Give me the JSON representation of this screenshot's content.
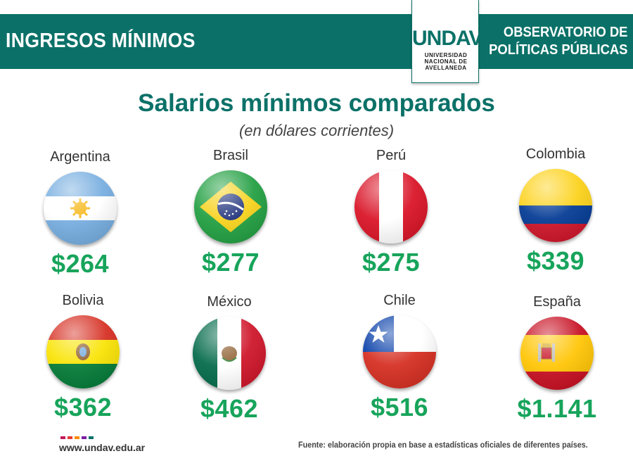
{
  "header": {
    "left_title": "INGRESOS MÍNIMOS",
    "right_line1": "OBSERVATORIO DE",
    "right_line2": "POLÍTICAS PÚBLICAS",
    "logo_text": "UNDAV",
    "logo_sub1": "UNIVERSIDAD",
    "logo_sub2": "NACIONAL DE",
    "logo_sub3": "AVELLANEDA",
    "color": "#0b7168"
  },
  "title": "Salarios mínimos comparados",
  "subtitle": "(en dólares corrientes)",
  "countries": [
    {
      "name": "Argentina",
      "value": "$264"
    },
    {
      "name": "Brasil",
      "value": "$277"
    },
    {
      "name": "Perú",
      "value": "$275"
    },
    {
      "name": "Colombia",
      "value": "$339"
    },
    {
      "name": "Bolivia",
      "value": "$362"
    },
    {
      "name": "México",
      "value": "$462"
    },
    {
      "name": "Chile",
      "value": "$516"
    },
    {
      "name": "España",
      "value": "$1.141"
    }
  ],
  "value_color": "#17a45b",
  "footer": {
    "website": "www.undav.edu.ar",
    "source": "Fuente: elaboración propia en base a estadísticas oficiales de diferentes países.",
    "dot_colors": [
      "#c2185b",
      "#e53935",
      "#fb8c00",
      "#7b1fa2",
      "#0b7168"
    ]
  }
}
